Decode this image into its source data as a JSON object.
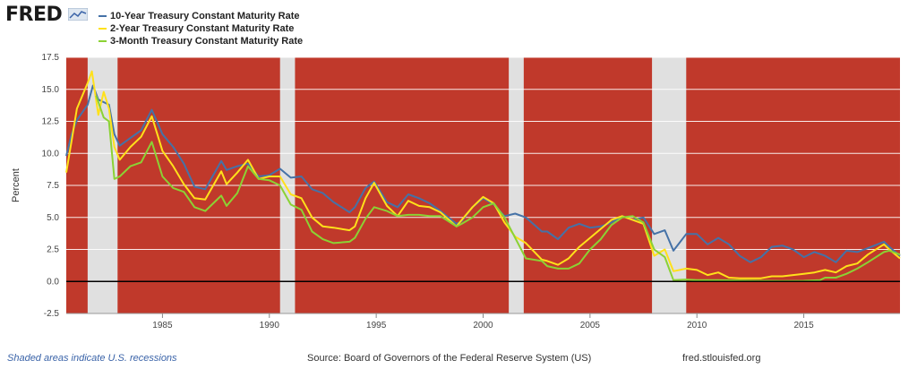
{
  "header": {
    "logo_text": "FRED",
    "logo_icon": "line-chart-icon"
  },
  "footer": {
    "recession_note": "Shaded areas indicate U.S. recessions",
    "source": "Source: Board of Governors of the Federal Reserve System (US)",
    "site": "fred.stlouisfed.org"
  },
  "colors": {
    "background": "#c0392b",
    "recession": "#e0e0e0",
    "grid": "#ffffff",
    "zero_line": "#000000"
  },
  "chart_data": {
    "type": "line",
    "title": "",
    "xlabel": "",
    "ylabel": "Percent",
    "xlim": [
      1980.5,
      2019.5
    ],
    "ylim": [
      -2.5,
      17.5
    ],
    "yticks": [
      "-2.5",
      "0.0",
      "2.5",
      "5.0",
      "7.5",
      "10.0",
      "12.5",
      "15.0",
      "17.5"
    ],
    "xticks": [
      "1985",
      "1990",
      "1995",
      "2000",
      "2005",
      "2010",
      "2015"
    ],
    "grid": true,
    "legend": "top-left",
    "recessions": [
      [
        1981.5,
        1982.9
      ],
      [
        1990.5,
        1991.2
      ],
      [
        2001.2,
        2001.9
      ],
      [
        2007.9,
        2009.5
      ]
    ],
    "series": [
      {
        "name": "10-Year Treasury Constant Maturity Rate",
        "color": "#4572a7",
        "points": [
          [
            1980.5,
            9.8
          ],
          [
            1980.75,
            11.5
          ],
          [
            1981,
            12.6
          ],
          [
            1981.5,
            13.8
          ],
          [
            1981.75,
            15.3
          ],
          [
            1982,
            14.2
          ],
          [
            1982.5,
            13.8
          ],
          [
            1982.75,
            11.5
          ],
          [
            1983,
            10.6
          ],
          [
            1983.5,
            11.2
          ],
          [
            1984,
            11.8
          ],
          [
            1984.5,
            13.4
          ],
          [
            1985,
            11.5
          ],
          [
            1985.5,
            10.5
          ],
          [
            1986,
            9.2
          ],
          [
            1986.5,
            7.4
          ],
          [
            1987,
            7.2
          ],
          [
            1987.75,
            9.4
          ],
          [
            1988,
            8.7
          ],
          [
            1988.5,
            9.0
          ],
          [
            1989,
            9.2
          ],
          [
            1989.5,
            8.2
          ],
          [
            1990,
            8.3
          ],
          [
            1990.5,
            8.8
          ],
          [
            1991,
            8.1
          ],
          [
            1991.5,
            8.2
          ],
          [
            1992,
            7.2
          ],
          [
            1992.5,
            6.9
          ],
          [
            1993,
            6.2
          ],
          [
            1993.75,
            5.4
          ],
          [
            1994,
            5.8
          ],
          [
            1994.5,
            7.3
          ],
          [
            1994.9,
            7.8
          ],
          [
            1995.5,
            6.2
          ],
          [
            1996,
            5.8
          ],
          [
            1996.5,
            6.8
          ],
          [
            1997,
            6.5
          ],
          [
            1997.5,
            6.1
          ],
          [
            1998,
            5.5
          ],
          [
            1998.75,
            4.5
          ],
          [
            1999,
            4.7
          ],
          [
            1999.5,
            5.8
          ],
          [
            2000,
            6.5
          ],
          [
            2000.5,
            6.0
          ],
          [
            2001,
            5.1
          ],
          [
            2001.5,
            5.3
          ],
          [
            2002,
            5.0
          ],
          [
            2002.75,
            3.9
          ],
          [
            2003,
            3.9
          ],
          [
            2003.5,
            3.3
          ],
          [
            2004,
            4.2
          ],
          [
            2004.5,
            4.5
          ],
          [
            2005,
            4.2
          ],
          [
            2005.5,
            4.3
          ],
          [
            2006,
            4.6
          ],
          [
            2006.5,
            5.1
          ],
          [
            2007,
            4.8
          ],
          [
            2007.5,
            5.0
          ],
          [
            2008,
            3.7
          ],
          [
            2008.5,
            4.0
          ],
          [
            2008.9,
            2.4
          ],
          [
            2009.5,
            3.7
          ],
          [
            2010,
            3.7
          ],
          [
            2010.5,
            2.9
          ],
          [
            2011,
            3.4
          ],
          [
            2011.5,
            2.9
          ],
          [
            2012,
            2.0
          ],
          [
            2012.5,
            1.5
          ],
          [
            2013,
            1.9
          ],
          [
            2013.5,
            2.7
          ],
          [
            2014,
            2.8
          ],
          [
            2014.5,
            2.5
          ],
          [
            2015,
            1.9
          ],
          [
            2015.5,
            2.3
          ],
          [
            2016,
            2.0
          ],
          [
            2016.5,
            1.5
          ],
          [
            2017,
            2.4
          ],
          [
            2017.5,
            2.3
          ],
          [
            2018,
            2.6
          ],
          [
            2018.75,
            3.1
          ],
          [
            2019,
            2.7
          ],
          [
            2019.5,
            2.0
          ]
        ]
      },
      {
        "name": "2-Year Treasury Constant Maturity Rate",
        "color": "#ffe11a",
        "points": [
          [
            1980.5,
            8.5
          ],
          [
            1980.75,
            11.0
          ],
          [
            1981,
            13.5
          ],
          [
            1981.5,
            15.5
          ],
          [
            1981.7,
            16.4
          ],
          [
            1982,
            13.0
          ],
          [
            1982.25,
            14.8
          ],
          [
            1982.5,
            13.5
          ],
          [
            1982.75,
            10.5
          ],
          [
            1983,
            9.5
          ],
          [
            1983.5,
            10.5
          ],
          [
            1984,
            11.3
          ],
          [
            1984.5,
            12.9
          ],
          [
            1985,
            10.2
          ],
          [
            1985.5,
            9.0
          ],
          [
            1986,
            7.6
          ],
          [
            1986.5,
            6.5
          ],
          [
            1987,
            6.4
          ],
          [
            1987.75,
            8.6
          ],
          [
            1988,
            7.6
          ],
          [
            1988.5,
            8.5
          ],
          [
            1989,
            9.5
          ],
          [
            1989.5,
            8.0
          ],
          [
            1990,
            8.2
          ],
          [
            1990.5,
            8.2
          ],
          [
            1991,
            6.8
          ],
          [
            1991.5,
            6.5
          ],
          [
            1992,
            5.0
          ],
          [
            1992.5,
            4.3
          ],
          [
            1993,
            4.2
          ],
          [
            1993.75,
            4.0
          ],
          [
            1994,
            4.3
          ],
          [
            1994.5,
            6.5
          ],
          [
            1994.9,
            7.7
          ],
          [
            1995.5,
            5.9
          ],
          [
            1996,
            5.1
          ],
          [
            1996.5,
            6.3
          ],
          [
            1997,
            5.9
          ],
          [
            1997.5,
            5.8
          ],
          [
            1998,
            5.4
          ],
          [
            1998.75,
            4.3
          ],
          [
            1999,
            4.8
          ],
          [
            1999.5,
            5.8
          ],
          [
            2000,
            6.6
          ],
          [
            2000.5,
            6.1
          ],
          [
            2001,
            4.6
          ],
          [
            2001.5,
            3.5
          ],
          [
            2002,
            3.0
          ],
          [
            2002.75,
            1.7
          ],
          [
            2003,
            1.6
          ],
          [
            2003.5,
            1.3
          ],
          [
            2004,
            1.8
          ],
          [
            2004.5,
            2.7
          ],
          [
            2005,
            3.4
          ],
          [
            2005.5,
            4.1
          ],
          [
            2006,
            4.8
          ],
          [
            2006.5,
            5.1
          ],
          [
            2007,
            4.8
          ],
          [
            2007.5,
            4.5
          ],
          [
            2008,
            2.0
          ],
          [
            2008.5,
            2.5
          ],
          [
            2008.9,
            0.8
          ],
          [
            2009.5,
            1.0
          ],
          [
            2010,
            0.9
          ],
          [
            2010.5,
            0.5
          ],
          [
            2011,
            0.7
          ],
          [
            2011.5,
            0.3
          ],
          [
            2012,
            0.25
          ],
          [
            2013,
            0.25
          ],
          [
            2013.5,
            0.4
          ],
          [
            2014,
            0.4
          ],
          [
            2014.5,
            0.5
          ],
          [
            2015,
            0.6
          ],
          [
            2015.5,
            0.7
          ],
          [
            2016,
            0.9
          ],
          [
            2016.5,
            0.7
          ],
          [
            2017,
            1.2
          ],
          [
            2017.5,
            1.4
          ],
          [
            2018,
            2.1
          ],
          [
            2018.75,
            2.9
          ],
          [
            2019,
            2.5
          ],
          [
            2019.5,
            1.8
          ]
        ]
      },
      {
        "name": "3-Month Treasury Constant Maturity Rate",
        "color": "#8bd234",
        "points": [
          [
            1981.9,
            14.5
          ],
          [
            1982.25,
            12.8
          ],
          [
            1982.5,
            12.5
          ],
          [
            1982.75,
            8.0
          ],
          [
            1983,
            8.2
          ],
          [
            1983.5,
            9.0
          ],
          [
            1984,
            9.3
          ],
          [
            1984.5,
            10.9
          ],
          [
            1985,
            8.2
          ],
          [
            1985.5,
            7.3
          ],
          [
            1986,
            7.0
          ],
          [
            1986.5,
            5.8
          ],
          [
            1987,
            5.5
          ],
          [
            1987.75,
            6.7
          ],
          [
            1988,
            5.9
          ],
          [
            1988.5,
            6.9
          ],
          [
            1989,
            9.0
          ],
          [
            1989.5,
            8.0
          ],
          [
            1990,
            7.9
          ],
          [
            1990.5,
            7.5
          ],
          [
            1991,
            6.0
          ],
          [
            1991.5,
            5.6
          ],
          [
            1992,
            3.9
          ],
          [
            1992.5,
            3.3
          ],
          [
            1993,
            3.0
          ],
          [
            1993.75,
            3.1
          ],
          [
            1994,
            3.4
          ],
          [
            1994.5,
            4.9
          ],
          [
            1994.9,
            5.8
          ],
          [
            1995.5,
            5.5
          ],
          [
            1996,
            5.1
          ],
          [
            1996.5,
            5.2
          ],
          [
            1997,
            5.2
          ],
          [
            1997.5,
            5.1
          ],
          [
            1998,
            5.1
          ],
          [
            1998.75,
            4.3
          ],
          [
            1999,
            4.5
          ],
          [
            1999.5,
            5.0
          ],
          [
            2000,
            5.8
          ],
          [
            2000.5,
            6.1
          ],
          [
            2001,
            5.0
          ],
          [
            2001.5,
            3.4
          ],
          [
            2002,
            1.8
          ],
          [
            2002.75,
            1.6
          ],
          [
            2003,
            1.2
          ],
          [
            2003.5,
            1.0
          ],
          [
            2004,
            1.0
          ],
          [
            2004.5,
            1.4
          ],
          [
            2005,
            2.5
          ],
          [
            2005.5,
            3.3
          ],
          [
            2006,
            4.4
          ],
          [
            2006.5,
            5.0
          ],
          [
            2007,
            5.1
          ],
          [
            2007.5,
            4.6
          ],
          [
            2008,
            2.5
          ],
          [
            2008.5,
            1.9
          ],
          [
            2008.9,
            0.1
          ],
          [
            2009.5,
            0.15
          ],
          [
            2010,
            0.1
          ],
          [
            2011,
            0.1
          ],
          [
            2012,
            0.08
          ],
          [
            2013,
            0.05
          ],
          [
            2014,
            0.04
          ],
          [
            2015,
            0.05
          ],
          [
            2015.75,
            0.1
          ],
          [
            2016,
            0.3
          ],
          [
            2016.5,
            0.3
          ],
          [
            2017,
            0.6
          ],
          [
            2017.5,
            1.0
          ],
          [
            2018,
            1.5
          ],
          [
            2018.75,
            2.3
          ],
          [
            2019,
            2.4
          ],
          [
            2019.5,
            2.1
          ]
        ]
      }
    ]
  }
}
